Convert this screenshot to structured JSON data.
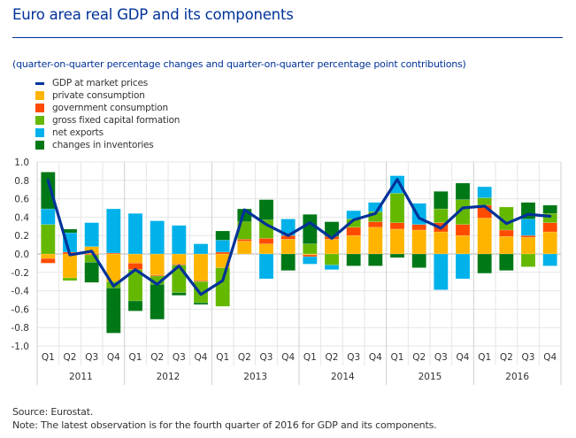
{
  "chart_data": {
    "type": "bar",
    "stacked": true,
    "title": "Euro area real GDP and its components",
    "subtitle": "(quarter-on-quarter percentage changes and quarter-on-quarter percentage point contributions)",
    "ylim": [
      -1.0,
      1.0
    ],
    "yticks": [
      -1.0,
      -0.8,
      -0.6,
      -0.4,
      -0.2,
      0.0,
      0.2,
      0.4,
      0.6,
      0.8,
      1.0
    ],
    "ytick_labels": [
      "-1.0",
      "-0.8",
      "-0.6",
      "-0.4",
      "-0.2",
      "0.0",
      "0.2",
      "0.4",
      "0.6",
      "0.8",
      "1.0"
    ],
    "grid": true,
    "legend_position": "top-left",
    "years": [
      "2011",
      "2012",
      "2013",
      "2014",
      "2015",
      "2016"
    ],
    "quarters": [
      "Q1",
      "Q2",
      "Q3",
      "Q4"
    ],
    "categories": [
      "2011Q1",
      "2011Q2",
      "2011Q3",
      "2011Q4",
      "2012Q1",
      "2012Q2",
      "2012Q3",
      "2012Q4",
      "2013Q1",
      "2013Q2",
      "2013Q3",
      "2013Q4",
      "2014Q1",
      "2014Q2",
      "2014Q3",
      "2014Q4",
      "2015Q1",
      "2015Q2",
      "2015Q3",
      "2015Q4",
      "2016Q1",
      "2016Q2",
      "2016Q3",
      "2016Q4"
    ],
    "line_series": {
      "name": "GDP at market prices",
      "color": "#003299",
      "values": [
        0.8,
        -0.01,
        0.03,
        -0.35,
        -0.17,
        -0.33,
        -0.13,
        -0.44,
        -0.29,
        0.48,
        0.32,
        0.2,
        0.34,
        0.17,
        0.37,
        0.44,
        0.81,
        0.39,
        0.28,
        0.5,
        0.52,
        0.33,
        0.43,
        0.41
      ]
    },
    "series": [
      {
        "name": "private consumption",
        "color": "#FFB400",
        "values": [
          -0.05,
          -0.26,
          0.08,
          -0.3,
          -0.1,
          -0.23,
          -0.11,
          -0.29,
          -0.15,
          0.14,
          0.11,
          0.16,
          -0.01,
          0.16,
          0.2,
          0.29,
          0.27,
          0.26,
          0.24,
          0.2,
          0.39,
          0.19,
          0.18,
          0.24
        ]
      },
      {
        "name": "government consumption",
        "color": "#FF4B00",
        "values": [
          -0.05,
          0.02,
          -0.01,
          0.01,
          -0.07,
          -0.01,
          -0.01,
          -0.01,
          0.02,
          0.02,
          0.06,
          0.04,
          -0.02,
          0.03,
          0.09,
          0.06,
          0.07,
          0.06,
          0.1,
          0.12,
          0.14,
          0.07,
          0.02,
          0.1
        ]
      },
      {
        "name": "gross fixed capital formation",
        "color": "#65B800",
        "values": [
          0.32,
          -0.03,
          -0.08,
          -0.07,
          -0.34,
          -0.09,
          -0.3,
          -0.23,
          -0.42,
          0.19,
          0.2,
          0.0,
          0.11,
          -0.12,
          0.09,
          0.11,
          0.32,
          0.0,
          0.15,
          0.27,
          0.08,
          0.25,
          -0.14,
          0.1
        ]
      },
      {
        "name": "net exports",
        "color": "#00B1EA",
        "values": [
          0.17,
          0.21,
          0.26,
          0.48,
          0.44,
          0.36,
          0.31,
          0.11,
          0.13,
          0.0,
          -0.27,
          0.18,
          -0.08,
          -0.05,
          0.09,
          0.1,
          0.19,
          0.23,
          -0.39,
          -0.27,
          0.12,
          0.0,
          0.18,
          -0.13
        ]
      },
      {
        "name": "changes in inventories",
        "color": "#007816",
        "values": [
          0.4,
          0.04,
          -0.22,
          -0.49,
          -0.11,
          -0.38,
          -0.03,
          -0.02,
          0.1,
          0.14,
          0.22,
          -0.18,
          0.32,
          0.16,
          -0.13,
          -0.13,
          -0.04,
          -0.15,
          0.19,
          0.18,
          -0.21,
          -0.18,
          0.18,
          0.09
        ]
      }
    ]
  },
  "legend": [
    {
      "label": "GDP at market prices",
      "color": "#003299",
      "kind": "line"
    },
    {
      "label": "private consumption",
      "color": "#FFB400",
      "kind": "box"
    },
    {
      "label": "government consumption",
      "color": "#FF4B00",
      "kind": "box"
    },
    {
      "label": "gross fixed capital formation",
      "color": "#65B800",
      "kind": "box"
    },
    {
      "label": "net exports",
      "color": "#00B1EA",
      "kind": "box"
    },
    {
      "label": "changes in inventories",
      "color": "#007816",
      "kind": "box"
    }
  ],
  "footer": {
    "source": "Source: Eurostat.",
    "note": "Note: The latest observation is for the fourth quarter of 2016 for GDP and its components."
  }
}
